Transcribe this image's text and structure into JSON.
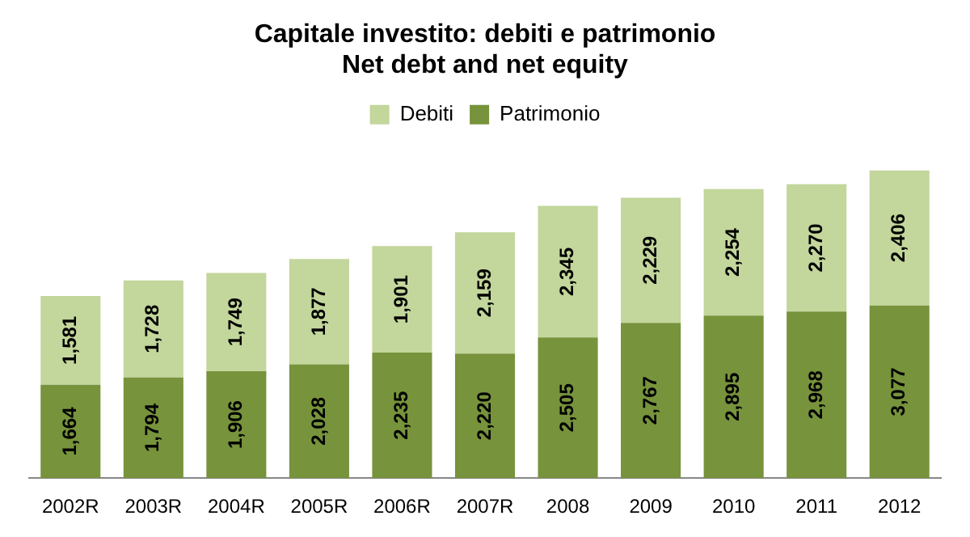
{
  "chart_data": {
    "type": "bar",
    "title": "Capitale investito: debiti e patrimonio\nNet debt and net equity",
    "categories": [
      "2002R",
      "2003R",
      "2004R",
      "2005R",
      "2006R",
      "2007R",
      "2008",
      "2009",
      "2010",
      "2011",
      "2012"
    ],
    "stacked": true,
    "legend": "top",
    "grid": false,
    "series": [
      {
        "name": "Patrimonio",
        "color": "#77933c",
        "values": [
          1664,
          1794,
          1906,
          2028,
          2235,
          2220,
          2505,
          2767,
          2895,
          2968,
          3077
        ],
        "value_labels": [
          "1,664",
          "1,794",
          "1,906",
          "2,028",
          "2,235",
          "2,220",
          "2,505",
          "2,767",
          "2,895",
          "2,968",
          "3,077"
        ]
      },
      {
        "name": "Debiti",
        "color": "#c3d69b",
        "values": [
          1581,
          1728,
          1749,
          1877,
          1901,
          2159,
          2345,
          2229,
          2254,
          2270,
          2406
        ],
        "value_labels": [
          "1,581",
          "1,728",
          "1,749",
          "1,877",
          "1,901",
          "2,159",
          "2,345",
          "2,229",
          "2,254",
          "2,270",
          "2,406"
        ]
      }
    ]
  }
}
